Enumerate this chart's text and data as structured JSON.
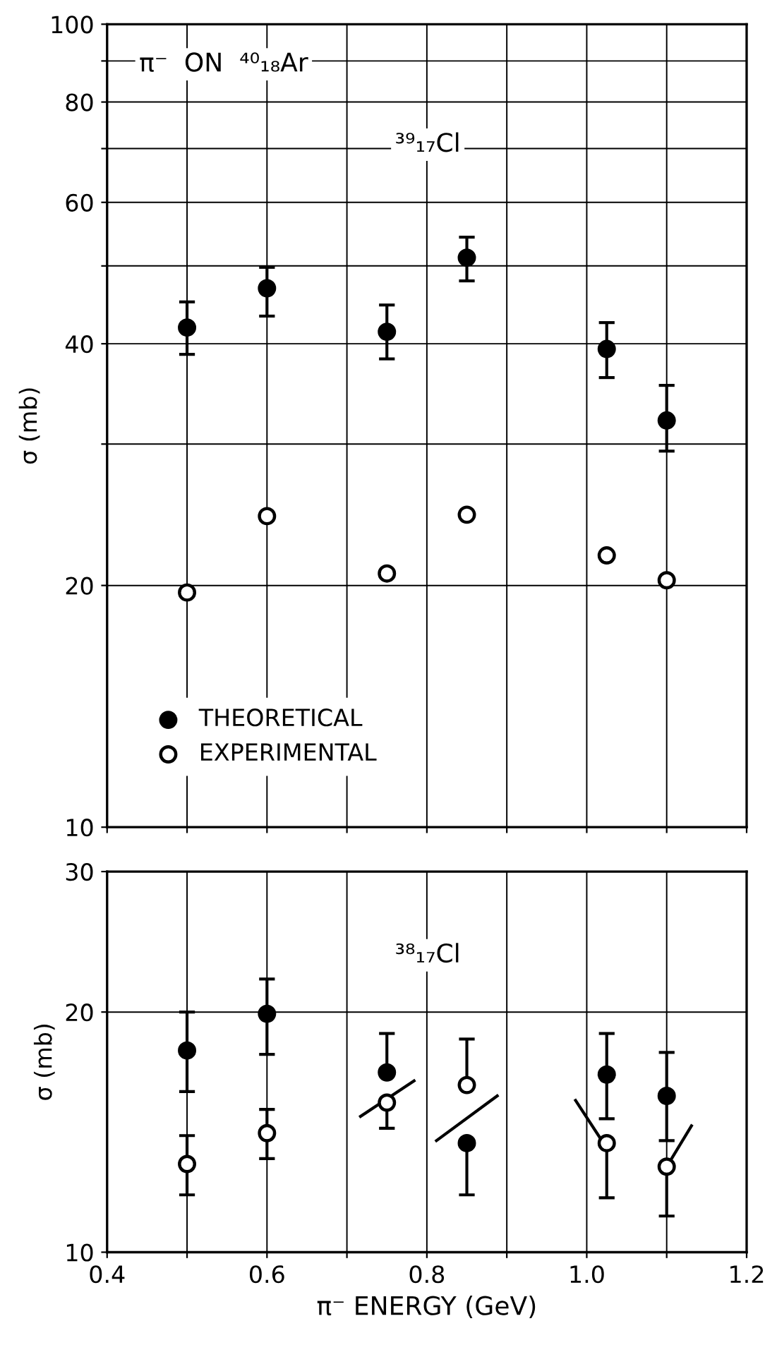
{
  "chart_data": [
    {
      "type": "scatter",
      "annotations": [
        "π⁻  ON  ⁴⁰₁₈Ar",
        "³⁹₁₇Cl"
      ],
      "ylabel": "σ (mb)",
      "log": "y",
      "grid": true,
      "legend": "bottom left",
      "marker": "circle",
      "tick_labels": "y",
      "x": [
        0.5,
        0.6,
        0.75,
        0.85,
        1.025,
        1.1
      ],
      "xlim": [
        0.4,
        1.2
      ],
      "xticks": [
        {
          "value": 0.4,
          "label": null
        },
        {
          "value": 0.5,
          "label": null
        },
        {
          "value": 0.6,
          "label": null
        },
        {
          "value": 0.7,
          "label": null
        },
        {
          "value": 0.8,
          "label": null
        },
        {
          "value": 0.9,
          "label": null
        },
        {
          "value": 1.0,
          "label": null
        },
        {
          "value": 1.1,
          "label": null
        },
        {
          "value": 1.2,
          "label": null
        }
      ],
      "ylim": [
        10,
        100
      ],
      "yticks": [
        10,
        20,
        {
          "value": 30,
          "label": null
        },
        40,
        {
          "value": 50,
          "label": null
        },
        60,
        {
          "value": 70,
          "label": null
        },
        80,
        {
          "value": 90,
          "label": null
        },
        100
      ],
      "series": [
        {
          "name": "THEORETICAL",
          "color": "#000000",
          "values": [
            41.9,
            46.9,
            41.4,
            51.2,
            39.4,
            32.1
          ],
          "errors": [
            [
              38.8,
              45.1
            ],
            [
              43.3,
              49.8
            ],
            [
              38.3,
              44.7
            ],
            [
              47.9,
              54.3
            ],
            [
              36.3,
              42.5
            ],
            [
              29.4,
              35.5
            ]
          ]
        },
        {
          "name": "EXPERIMENTAL",
          "color": "#000000",
          "values": [
            19.6,
            24.4,
            20.7,
            24.5,
            21.8,
            20.3
          ]
        }
      ]
    },
    {
      "type": "scatter",
      "annotations": [
        "³⁸₁₇Cl"
      ],
      "xlabel": "π⁻ ENERGY (GeV)",
      "ylabel": "σ (mb)",
      "log": "y",
      "grid": true,
      "marker": "circle",
      "x": [
        0.5,
        0.6,
        0.75,
        0.85,
        1.025,
        1.1
      ],
      "xlim": [
        0.4,
        1.2
      ],
      "xticks": [
        0.4,
        {
          "value": 0.5,
          "label": null
        },
        0.6,
        {
          "value": 0.7,
          "label": null
        },
        0.8,
        {
          "value": 0.9,
          "label": null
        },
        {
          "value": 1.0,
          "label": "1.0"
        },
        {
          "value": 1.1,
          "label": null
        },
        1.2
      ],
      "ylim": [
        10,
        30
      ],
      "yticks": [
        10,
        20,
        30
      ],
      "series": [
        {
          "color": "#000000",
          "values": [
            17.9,
            19.9,
            16.8,
            13.7,
            16.7,
            15.7
          ],
          "errors": [
            [
              15.9,
              20.0
            ],
            [
              17.7,
              22.0
            ],
            [
              16.8,
              18.8
            ],
            [
              11.8,
              13.7
            ],
            [
              14.7,
              18.8
            ],
            [
              13.8,
              17.8
            ]
          ]
        },
        {
          "color": "#000000",
          "values": [
            12.9,
            14.1,
            15.4,
            16.2,
            13.7,
            12.8
          ],
          "errors": [
            [
              11.8,
              14.0
            ],
            [
              13.1,
              15.1
            ],
            [
              14.3,
              15.4
            ],
            [
              16.2,
              18.5
            ],
            [
              11.7,
              13.7
            ],
            [
              11.1,
              12.8
            ]
          ]
        },
        {
          "type": "line",
          "marker": "none",
          "color": "#000000",
          "x": [
            0.717,
            0.784
          ],
          "values": [
            14.8,
            16.4
          ]
        },
        {
          "type": "line",
          "marker": "none",
          "color": "#000000",
          "x": [
            0.812,
            0.888
          ],
          "values": [
            13.8,
            15.7
          ]
        },
        {
          "type": "line",
          "marker": "none",
          "color": "#000000",
          "x": [
            0.986,
            1.023
          ],
          "values": [
            15.5,
            13.6
          ]
        },
        {
          "type": "line",
          "marker": "none",
          "color": "#000000",
          "x": [
            1.098,
            1.131
          ],
          "values": [
            12.7,
            14.4
          ]
        }
      ]
    }
  ]
}
